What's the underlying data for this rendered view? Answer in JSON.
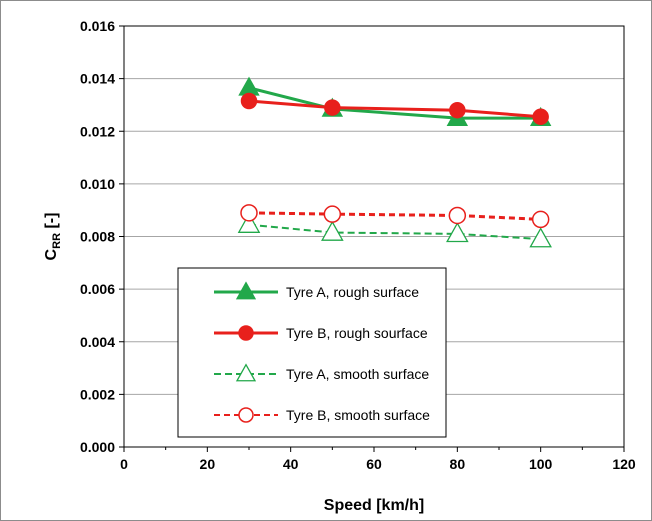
{
  "chart_data": {
    "type": "line",
    "xlabel": "Speed [km/h]",
    "ylabel_main": "C",
    "ylabel_sub": "RR",
    "ylabel_tail": " [-]",
    "xlim": [
      0,
      120
    ],
    "ylim": [
      0,
      0.016
    ],
    "x_ticks": [
      "0",
      "20",
      "40",
      "60",
      "80",
      "100",
      "120"
    ],
    "y_ticks": [
      "0.000",
      "0.002",
      "0.004",
      "0.006",
      "0.008",
      "0.010",
      "0.012",
      "0.014",
      "0.016"
    ],
    "grid": "horizontal",
    "legend_position": "lower-left",
    "series": [
      {
        "name": "Tyre A, rough surface",
        "x": [
          30,
          50,
          80,
          100
        ],
        "y": [
          0.01365,
          0.01285,
          0.0125,
          0.0125
        ],
        "color": "#22a84a",
        "marker": "triangle",
        "filled": true,
        "dashed": false
      },
      {
        "name": "Tyre B, rough sourface",
        "x": [
          30,
          50,
          80,
          100
        ],
        "y": [
          0.01315,
          0.0129,
          0.0128,
          0.01255
        ],
        "color": "#e8201c",
        "marker": "circle",
        "filled": true,
        "dashed": false
      },
      {
        "name": "Tyre A, smooth surface",
        "x": [
          30,
          50,
          80,
          100
        ],
        "y": [
          0.00845,
          0.00815,
          0.0081,
          0.0079
        ],
        "color": "#22a84a",
        "marker": "triangle",
        "filled": false,
        "dashed": true
      },
      {
        "name": "Tyre B, smooth surface",
        "x": [
          30,
          50,
          80,
          100
        ],
        "y": [
          0.0089,
          0.00885,
          0.0088,
          0.00865
        ],
        "color": "#e8201c",
        "marker": "circle",
        "filled": false,
        "dashed": true
      }
    ]
  }
}
